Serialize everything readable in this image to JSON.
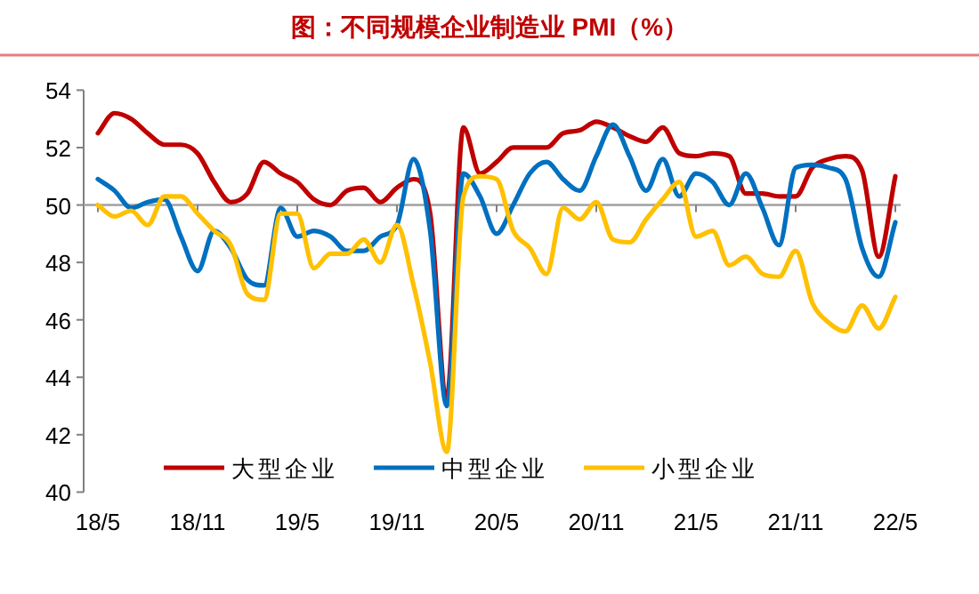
{
  "chart_data": {
    "type": "line",
    "title": "图：不同规模企业制造业 PMI（%）",
    "categories": [
      "18/5",
      null,
      null,
      null,
      null,
      null,
      "18/11",
      null,
      null,
      null,
      null,
      null,
      "19/5",
      null,
      null,
      null,
      null,
      null,
      "19/11",
      null,
      null,
      null,
      null,
      null,
      "20/5",
      null,
      null,
      null,
      null,
      null,
      "20/11",
      null,
      null,
      null,
      null,
      null,
      "21/5",
      null,
      null,
      null,
      null,
      null,
      "21/11",
      null,
      null,
      null,
      null,
      null,
      "22/5"
    ],
    "series": [
      {
        "name": "大型企业",
        "color": "#c00000",
        "values": [
          52.5,
          53.2,
          53.0,
          52.5,
          52.1,
          52.1,
          51.8,
          50.8,
          50.1,
          50.4,
          51.5,
          51.1,
          50.8,
          50.2,
          50.0,
          50.5,
          50.6,
          50.1,
          50.6,
          50.9,
          49.7,
          43.3,
          52.7,
          51.1,
          51.5,
          52.0,
          52.0,
          52.0,
          52.5,
          52.6,
          52.9,
          52.7,
          52.4,
          52.2,
          52.7,
          51.8,
          51.7,
          51.8,
          51.7,
          50.4,
          50.4,
          50.3,
          50.3,
          51.3,
          51.6,
          51.7,
          51.2,
          48.2,
          51.0
        ]
      },
      {
        "name": "中型企业",
        "color": "#0070c0",
        "values": [
          50.9,
          50.5,
          49.9,
          50.1,
          50.2,
          48.9,
          47.7,
          49.1,
          48.5,
          47.4,
          47.2,
          49.9,
          48.9,
          49.1,
          48.9,
          48.4,
          48.4,
          48.9,
          49.3,
          51.6,
          49.1,
          43.0,
          51.1,
          50.3,
          49.0,
          50.0,
          51.1,
          51.5,
          50.9,
          50.5,
          51.7,
          52.8,
          51.7,
          50.5,
          51.6,
          50.3,
          51.1,
          50.8,
          50.0,
          51.1,
          49.9,
          48.6,
          51.3,
          51.4,
          51.3,
          50.9,
          48.5,
          47.5,
          49.4
        ]
      },
      {
        "name": "小型企业",
        "color": "#ffc000",
        "values": [
          50.0,
          49.6,
          49.8,
          49.3,
          50.3,
          50.3,
          49.7,
          49.1,
          48.6,
          46.9,
          46.7,
          49.7,
          49.7,
          47.8,
          48.3,
          48.3,
          48.8,
          48.0,
          49.3,
          47.2,
          44.5,
          41.4,
          50.3,
          51.0,
          50.9,
          49.1,
          48.5,
          47.6,
          49.9,
          49.5,
          50.1,
          48.8,
          48.7,
          49.5,
          50.2,
          50.8,
          48.9,
          49.1,
          47.9,
          48.2,
          47.6,
          47.5,
          48.4,
          46.6,
          45.9,
          45.6,
          46.5,
          45.7,
          46.8
        ]
      }
    ],
    "ylim": [
      40,
      54
    ],
    "yticks": [
      40,
      42,
      44,
      46,
      48,
      50,
      52,
      54
    ],
    "ref_lines": [
      {
        "axis": "y",
        "value": 50,
        "color": "#a0a0a0"
      }
    ],
    "legend": "bottom"
  }
}
